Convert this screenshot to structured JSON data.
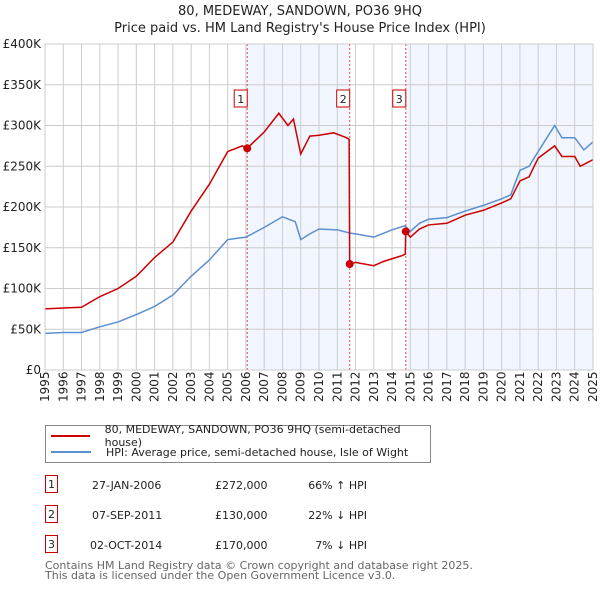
{
  "title": "80, MEDEWAY, SANDOWN, PO36 9HQ",
  "subtitle": "Price paid vs. HM Land Registry's House Price Index (HPI)",
  "chart_data": {
    "type": "line",
    "xlim": [
      1995,
      2025
    ],
    "ylim": [
      0,
      400000
    ],
    "x_ticks": [
      "1995",
      "1996",
      "1997",
      "1998",
      "1999",
      "2000",
      "2001",
      "2002",
      "2003",
      "2004",
      "2005",
      "2006",
      "2007",
      "2008",
      "2009",
      "2010",
      "2011",
      "2012",
      "2013",
      "2014",
      "2015",
      "2016",
      "2017",
      "2018",
      "2019",
      "2020",
      "2021",
      "2022",
      "2023",
      "2024",
      "2025"
    ],
    "y_ticks": [
      {
        "v": 0,
        "label": "£0"
      },
      {
        "v": 50000,
        "label": "£50K"
      },
      {
        "v": 100000,
        "label": "£100K"
      },
      {
        "v": 150000,
        "label": "£150K"
      },
      {
        "v": 200000,
        "label": "£200K"
      },
      {
        "v": 250000,
        "label": "£250K"
      },
      {
        "v": 300000,
        "label": "£300K"
      },
      {
        "v": 350000,
        "label": "£350K"
      },
      {
        "v": 400000,
        "label": "£400K"
      }
    ],
    "grid": true,
    "shaded_periods": [
      [
        2006.07,
        2011.68
      ],
      [
        2014.75,
        2025
      ]
    ],
    "series": [
      {
        "name": "80, MEDEWAY, SANDOWN, PO36 9HQ (semi-detached house)",
        "color": "#cc0000",
        "points": [
          [
            1995,
            75000
          ],
          [
            1996,
            76000
          ],
          [
            1997,
            77000
          ],
          [
            1998,
            90000
          ],
          [
            1999,
            100000
          ],
          [
            2000,
            115000
          ],
          [
            2001,
            138000
          ],
          [
            2002,
            157000
          ],
          [
            2003,
            195000
          ],
          [
            2004,
            228000
          ],
          [
            2005,
            268000
          ],
          [
            2005.8,
            275000
          ],
          [
            2006.07,
            272000
          ],
          [
            2007,
            292000
          ],
          [
            2007.8,
            315000
          ],
          [
            2008.3,
            300000
          ],
          [
            2008.6,
            308000
          ],
          [
            2009,
            265000
          ],
          [
            2009.5,
            287000
          ],
          [
            2010,
            288000
          ],
          [
            2010.8,
            291000
          ],
          [
            2011.5,
            285000
          ],
          [
            2011.65,
            283000
          ],
          [
            2011.68,
            130000
          ],
          [
            2012,
            132000
          ],
          [
            2013,
            128000
          ],
          [
            2013.5,
            133000
          ],
          [
            2014.5,
            140000
          ],
          [
            2014.72,
            142000
          ],
          [
            2014.75,
            170000
          ],
          [
            2015,
            163000
          ],
          [
            2015.5,
            173000
          ],
          [
            2016,
            178000
          ],
          [
            2017,
            180000
          ],
          [
            2018,
            190000
          ],
          [
            2019,
            196000
          ],
          [
            2020,
            205000
          ],
          [
            2020.5,
            210000
          ],
          [
            2021,
            232000
          ],
          [
            2021.5,
            237000
          ],
          [
            2022,
            260000
          ],
          [
            2022.9,
            275000
          ],
          [
            2023.3,
            262000
          ],
          [
            2024,
            262000
          ],
          [
            2024.3,
            250000
          ],
          [
            2025,
            258000
          ]
        ]
      },
      {
        "name": "HPI: Average price, semi-detached house, Isle of Wight",
        "color": "#5b8fd1",
        "points": [
          [
            1995,
            45000
          ],
          [
            1996,
            46000
          ],
          [
            1997,
            46000
          ],
          [
            1998,
            53000
          ],
          [
            1999,
            59000
          ],
          [
            2000,
            68000
          ],
          [
            2001,
            78000
          ],
          [
            2002,
            92000
          ],
          [
            2003,
            115000
          ],
          [
            2004,
            135000
          ],
          [
            2005,
            160000
          ],
          [
            2006,
            163000
          ],
          [
            2007,
            175000
          ],
          [
            2008,
            188000
          ],
          [
            2008.7,
            182000
          ],
          [
            2009,
            160000
          ],
          [
            2009.5,
            167000
          ],
          [
            2010,
            173000
          ],
          [
            2011,
            172000
          ],
          [
            2011.7,
            168000
          ],
          [
            2012,
            167000
          ],
          [
            2013,
            163000
          ],
          [
            2014,
            172000
          ],
          [
            2014.7,
            177000
          ],
          [
            2015,
            170000
          ],
          [
            2015.5,
            180000
          ],
          [
            2016,
            185000
          ],
          [
            2017,
            187000
          ],
          [
            2018,
            195000
          ],
          [
            2019,
            202000
          ],
          [
            2020,
            210000
          ],
          [
            2020.5,
            215000
          ],
          [
            2021,
            245000
          ],
          [
            2021.5,
            250000
          ],
          [
            2022,
            268000
          ],
          [
            2022.9,
            300000
          ],
          [
            2023.3,
            285000
          ],
          [
            2024,
            285000
          ],
          [
            2024.5,
            270000
          ],
          [
            2025,
            280000
          ]
        ]
      }
    ],
    "sales": [
      {
        "label": "1",
        "x": 2006.07,
        "y": 272000
      },
      {
        "label": "2",
        "x": 2011.68,
        "y": 130000
      },
      {
        "label": "3",
        "x": 2014.75,
        "y": 170000
      }
    ]
  },
  "legend": [
    {
      "label": "80, MEDEWAY, SANDOWN, PO36 9HQ (semi-detached house)",
      "color": "#cc0000"
    },
    {
      "label": "HPI: Average price, semi-detached house, Isle of Wight",
      "color": "#5b8fd1"
    }
  ],
  "transactions": [
    {
      "num": "1",
      "date": "27-JAN-2006",
      "price": "£272,000",
      "hpi": "66% ↑ HPI"
    },
    {
      "num": "2",
      "date": "07-SEP-2011",
      "price": "£130,000",
      "hpi": "22% ↓ HPI"
    },
    {
      "num": "3",
      "date": "02-OCT-2014",
      "price": "£170,000",
      "hpi": "7% ↓ HPI"
    }
  ],
  "footer": {
    "line1": "Contains HM Land Registry data © Crown copyright and database right 2025.",
    "line2": "This data is licensed under the Open Government Licence v3.0."
  }
}
